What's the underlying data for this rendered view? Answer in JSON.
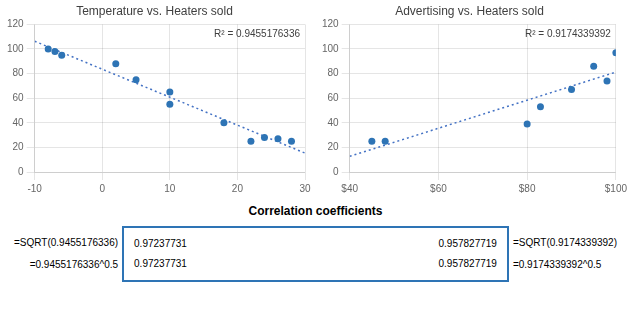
{
  "chart_data": [
    {
      "type": "scatter",
      "title": "Temperature vs. Heaters sold",
      "annotation": "R² = 0.9455176336",
      "xlim": [
        -10,
        30
      ],
      "ylim": [
        0,
        120
      ],
      "xticks": [
        -10,
        0,
        10,
        20,
        30
      ],
      "yticks": [
        0,
        20,
        40,
        60,
        80,
        100,
        120
      ],
      "grid": true,
      "series": [
        {
          "type": "scatter",
          "marker": "circle",
          "color": "#2E74B5",
          "x": [
            -8,
            -7,
            -6,
            2,
            5,
            10,
            10,
            18,
            22,
            24,
            26,
            28
          ],
          "values": [
            100,
            98,
            95,
            88,
            75,
            65,
            55,
            40,
            25,
            28,
            27,
            25
          ]
        },
        {
          "type": "line",
          "line_style": "dotted",
          "color": "#4472C4",
          "x": [
            -10,
            30
          ],
          "values": [
            106.3030746,
            15.3789934
          ]
        }
      ]
    },
    {
      "type": "scatter",
      "title": "Advertising vs. Heaters sold",
      "annotation": "R² = 0.9174339392",
      "xlim": [
        40,
        100
      ],
      "ylim": [
        0,
        120
      ],
      "xticks": [
        {
          "value": 40,
          "label": "$40"
        },
        {
          "value": 60,
          "label": "$60"
        },
        {
          "value": 80,
          "label": "$80"
        },
        {
          "value": 100,
          "label": "$100"
        }
      ],
      "yticks": [
        0,
        20,
        40,
        60,
        80,
        100,
        120
      ],
      "grid": true,
      "series": [
        {
          "type": "scatter",
          "marker": "circle",
          "color": "#2E74B5",
          "x": [
            45,
            48,
            80,
            83,
            90,
            95,
            98,
            100
          ],
          "values": [
            25,
            25,
            39,
            53,
            67,
            86,
            74,
            97
          ]
        },
        {
          "type": "line",
          "line_style": "dotted",
          "color": "#4472C4",
          "x": [
            40,
            100
          ],
          "values": [
            12.7392932,
            81.2193536
          ]
        }
      ]
    }
  ],
  "table": {
    "title": "Correlation coefficients",
    "color": "#2E74B5",
    "rows": [
      [
        "=SQRT(0.9455176336)",
        "0.97237731",
        "0.957827719",
        "=SQRT(0.9174339392)"
      ],
      [
        "=0.9455176336^0.5",
        "0.97237731",
        "0.957827719",
        "=0.9174339392^0.5"
      ]
    ]
  }
}
